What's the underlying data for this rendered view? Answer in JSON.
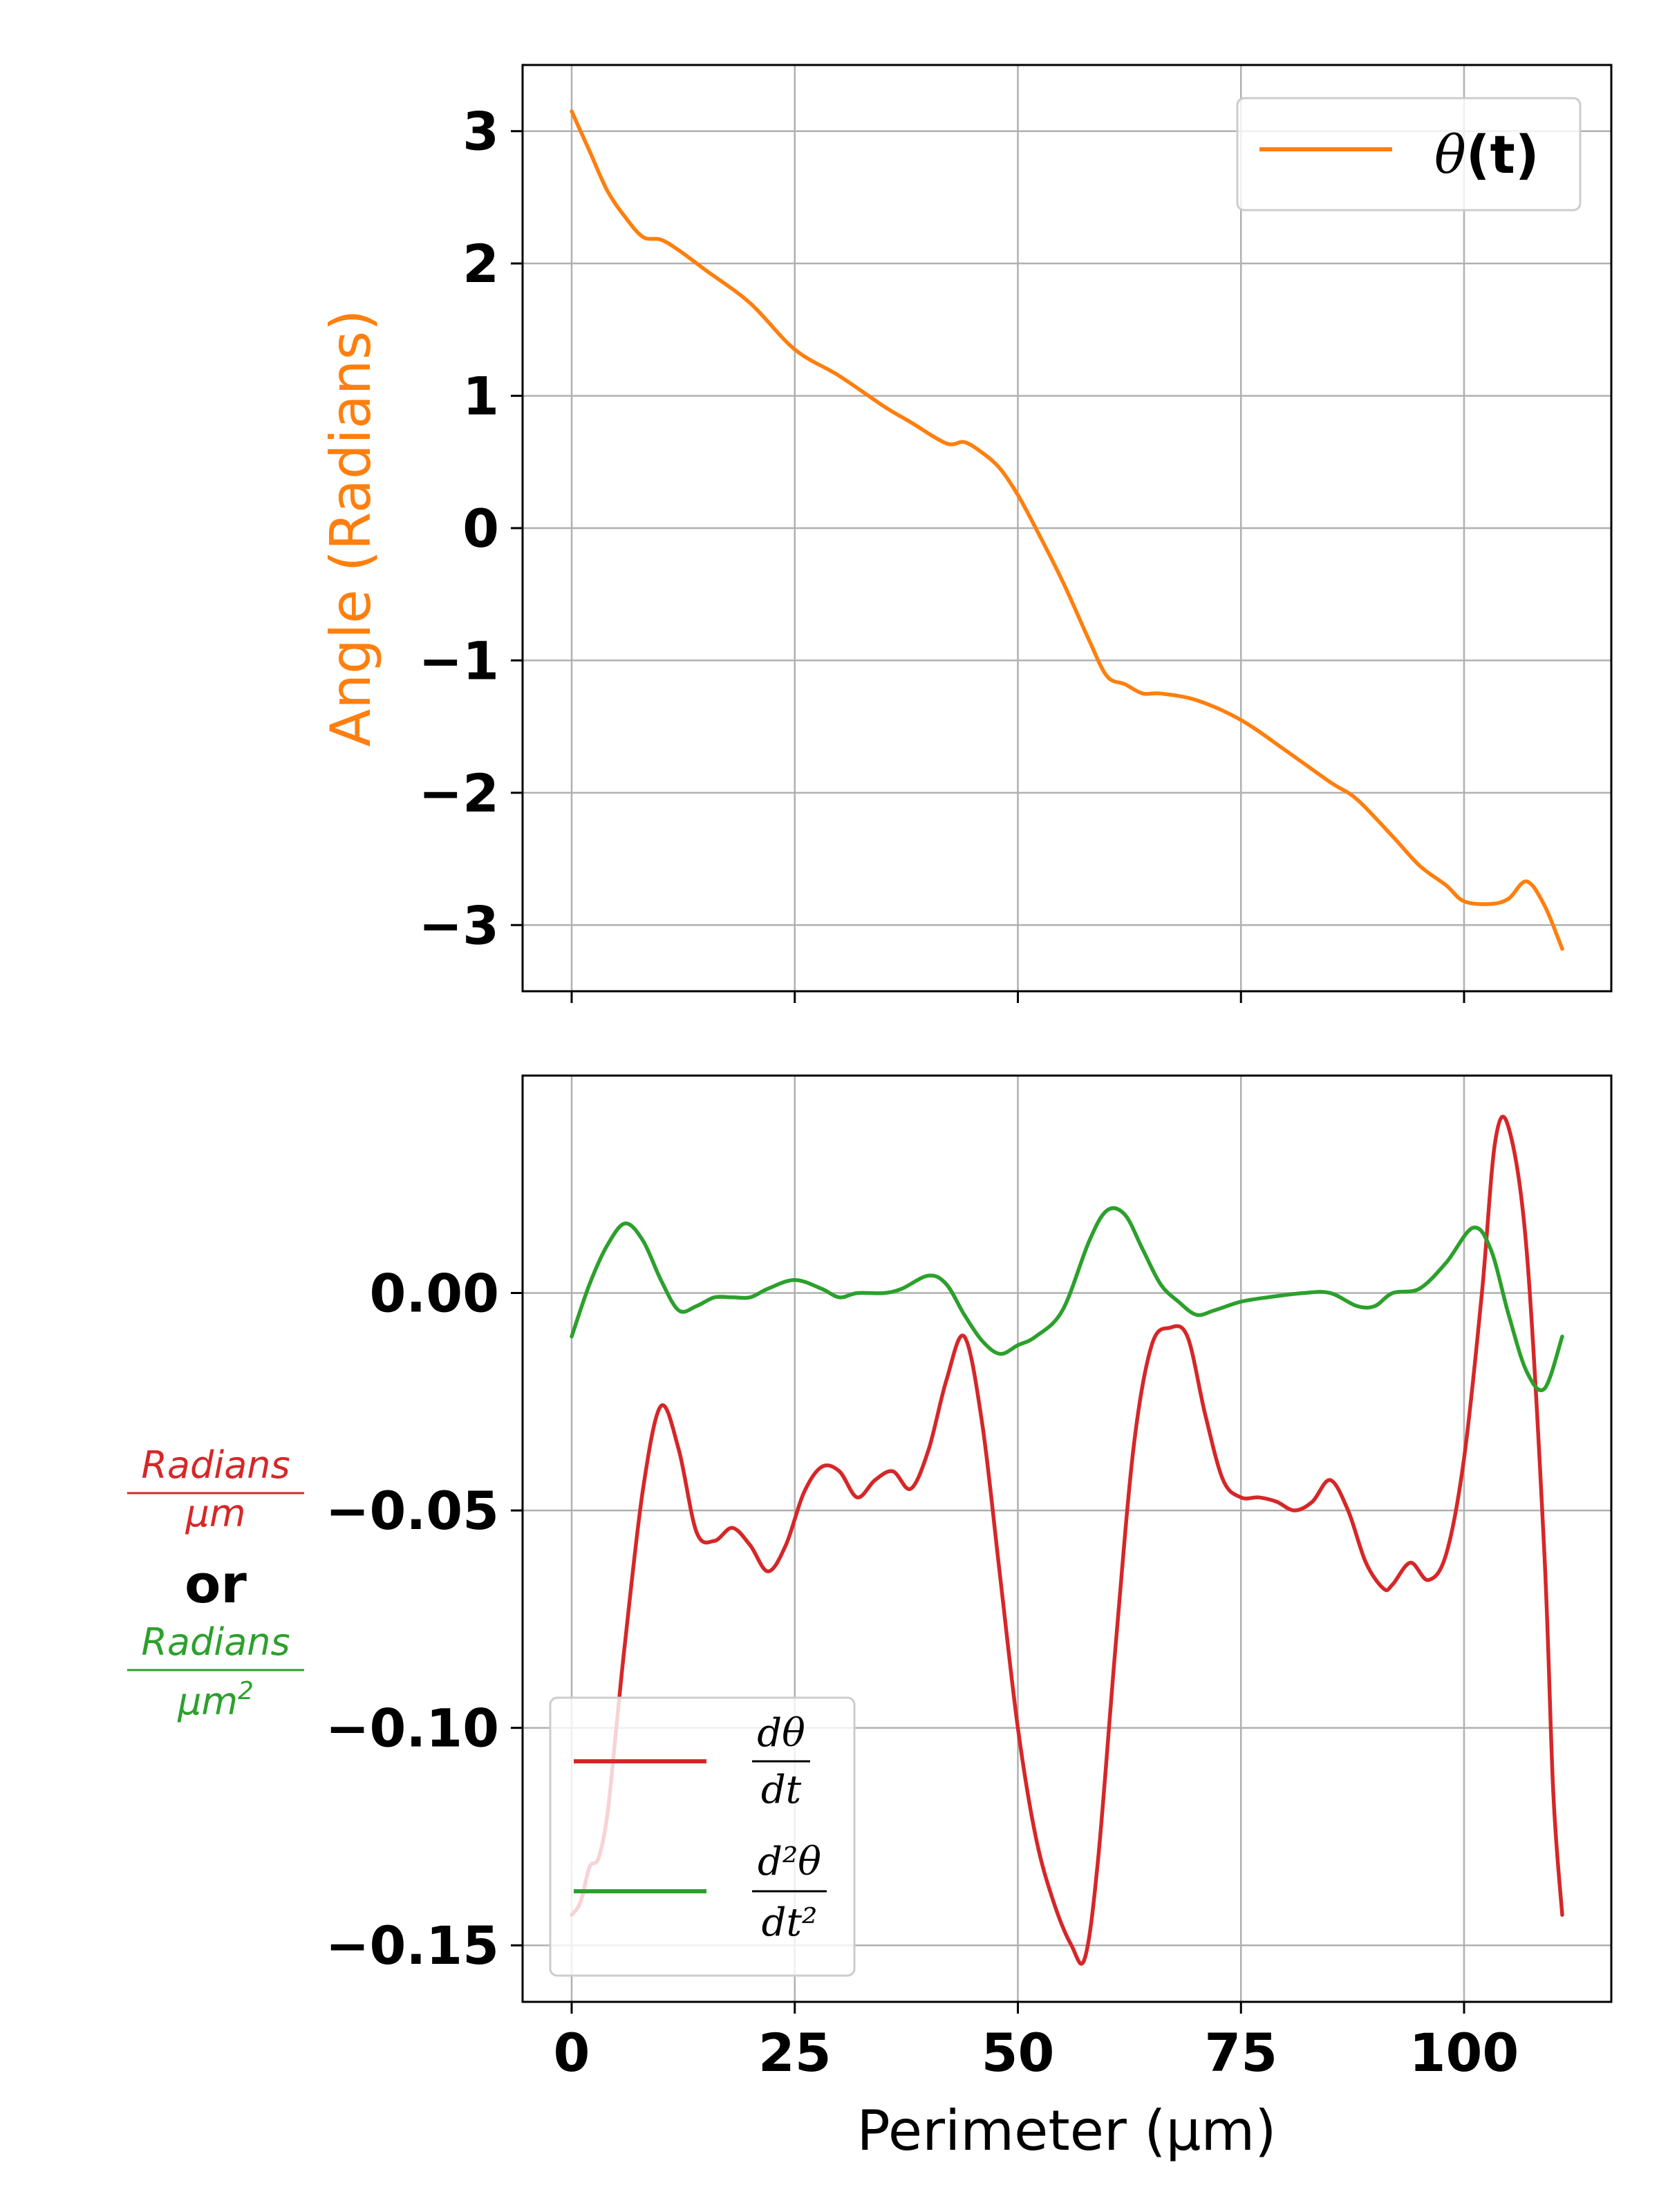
{
  "chart_data": [
    {
      "type": "line",
      "xlabel": "",
      "ylabel": "Angle (Radians)",
      "ylabel_color": "#ff7f0e",
      "xlim": [
        -5.5,
        116.5
      ],
      "ylim": [
        -3.5,
        3.5
      ],
      "yticks": [
        3,
        2,
        1,
        0,
        -1,
        -2,
        -3
      ],
      "ytick_labels": [
        "3",
        "2",
        "1",
        "0",
        "−1",
        "−2",
        "−3"
      ],
      "xticks": [
        0,
        25,
        50,
        75,
        100
      ],
      "grid": true,
      "legend_placement": "top-right",
      "legend": {
        "symbol": "θ",
        "suffix": "(t)"
      },
      "series": [
        {
          "name": "θ(t)",
          "color": "#ff7f0e",
          "x": [
            0,
            2,
            4,
            6,
            8,
            10,
            12,
            15,
            20,
            25,
            30,
            35,
            38,
            42,
            44,
            46,
            48,
            50,
            52,
            55,
            58,
            60,
            62,
            64,
            66,
            70,
            75,
            80,
            85,
            88,
            92,
            95,
            98,
            100,
            103,
            105,
            107,
            109,
            111
          ],
          "y": [
            3.15,
            2.85,
            2.55,
            2.35,
            2.2,
            2.18,
            2.1,
            1.95,
            1.7,
            1.35,
            1.15,
            0.92,
            0.8,
            0.64,
            0.65,
            0.57,
            0.45,
            0.25,
            0.0,
            -0.4,
            -0.85,
            -1.12,
            -1.18,
            -1.25,
            -1.25,
            -1.3,
            -1.45,
            -1.68,
            -1.92,
            -2.05,
            -2.33,
            -2.55,
            -2.7,
            -2.82,
            -2.84,
            -2.8,
            -2.67,
            -2.85,
            -3.18
          ]
        }
      ]
    },
    {
      "type": "line",
      "xlabel": "Perimeter (μm)",
      "xlim": [
        -5.5,
        116.5
      ],
      "ylim": [
        -0.163,
        0.05
      ],
      "yticks": [
        0.0,
        -0.05,
        -0.1,
        -0.15
      ],
      "ytick_labels": [
        "0.00",
        "−0.05",
        "−0.10",
        "−0.15"
      ],
      "xticks": [
        0,
        25,
        50,
        75,
        100
      ],
      "xtick_labels": [
        "0",
        "25",
        "50",
        "75",
        "100"
      ],
      "grid": true,
      "legend_placement": "lower-left",
      "ylabel_parts": {
        "first_numerator": "Radians",
        "first_denominator": "μm",
        "joiner": "or",
        "second_numerator": "Radians",
        "second_denominator": "μm",
        "second_denominator_exponent": "2"
      },
      "legend": [
        {
          "numerator": "dθ",
          "denominator": "dt"
        },
        {
          "numerator": "d²θ",
          "denominator": "dt²"
        }
      ],
      "series": [
        {
          "name": "dθ/dt",
          "color": "#d62728",
          "x": [
            0,
            1,
            2,
            3,
            4,
            5,
            6,
            8,
            10,
            12,
            14,
            16,
            18,
            20,
            22,
            24,
            26,
            28,
            30,
            32,
            34,
            36,
            38,
            40,
            42,
            44,
            46,
            48,
            50,
            52,
            54,
            56,
            57.5,
            59,
            61,
            63,
            65,
            67,
            69,
            71,
            73,
            75,
            77,
            79,
            81,
            83,
            85,
            87,
            89,
            91,
            92,
            94,
            96,
            98,
            100,
            102,
            103.5,
            105,
            107,
            109,
            110,
            111
          ],
          "y": [
            -0.143,
            -0.14,
            -0.132,
            -0.13,
            -0.12,
            -0.1,
            -0.08,
            -0.045,
            -0.026,
            -0.036,
            -0.055,
            -0.057,
            -0.054,
            -0.058,
            -0.064,
            -0.058,
            -0.046,
            -0.04,
            -0.041,
            -0.047,
            -0.043,
            -0.041,
            -0.045,
            -0.036,
            -0.02,
            -0.01,
            -0.03,
            -0.065,
            -0.1,
            -0.125,
            -0.14,
            -0.15,
            -0.153,
            -0.13,
            -0.08,
            -0.035,
            -0.012,
            -0.008,
            -0.01,
            -0.028,
            -0.043,
            -0.047,
            -0.047,
            -0.048,
            -0.05,
            -0.048,
            -0.043,
            -0.05,
            -0.062,
            -0.068,
            -0.067,
            -0.062,
            -0.066,
            -0.06,
            -0.038,
            0.0,
            0.035,
            0.038,
            0.01,
            -0.06,
            -0.115,
            -0.143
          ]
        },
        {
          "name": "d²θ/dt²",
          "color": "#2ca02c",
          "x": [
            0,
            2,
            4,
            6,
            8,
            10,
            12,
            14,
            16,
            18,
            20,
            22,
            25,
            28,
            30,
            32,
            35,
            37,
            40,
            42,
            44,
            46,
            48,
            50,
            52,
            55,
            58,
            60,
            62,
            64,
            66,
            68,
            70,
            72,
            75,
            78,
            82,
            85,
            88,
            90,
            92,
            95,
            98,
            101,
            103,
            105,
            107,
            109,
            111
          ],
          "y": [
            -0.01,
            0.002,
            0.011,
            0.016,
            0.012,
            0.003,
            -0.004,
            -0.003,
            -0.001,
            -0.001,
            -0.001,
            0.001,
            0.003,
            0.001,
            -0.001,
            0.0,
            0.0,
            0.001,
            0.004,
            0.002,
            -0.005,
            -0.011,
            -0.014,
            -0.012,
            -0.01,
            -0.004,
            0.012,
            0.019,
            0.018,
            0.01,
            0.002,
            -0.002,
            -0.005,
            -0.004,
            -0.002,
            -0.001,
            0.0,
            0.0,
            -0.003,
            -0.003,
            0.0,
            0.001,
            0.007,
            0.015,
            0.01,
            -0.005,
            -0.018,
            -0.022,
            -0.01
          ]
        }
      ]
    }
  ]
}
